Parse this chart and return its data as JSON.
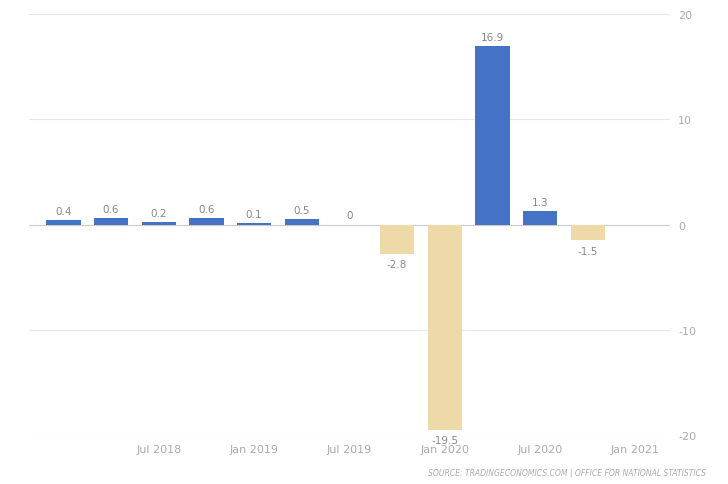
{
  "values": [
    0.4,
    0.6,
    0.2,
    0.6,
    0.1,
    0.5,
    0,
    -2.8,
    -19.5,
    16.9,
    1.3,
    -1.5
  ],
  "quarters_numeric": [
    2018.0,
    2018.25,
    2018.5,
    2018.75,
    2019.0,
    2019.25,
    2019.5,
    2019.75,
    2020.0,
    2020.25,
    2020.5,
    2020.75
  ],
  "bar_width": 0.18,
  "color_positive": "#4472C4",
  "color_negative": "#EED9A8",
  "ylim": [
    -20,
    20
  ],
  "yticks": [
    -20,
    -10,
    0,
    10,
    20
  ],
  "xtick_positions": [
    2018.5,
    2019.0,
    2019.5,
    2020.0,
    2020.5,
    2021.0
  ],
  "xtick_labels": [
    "Jul 2018",
    "Jan 2019",
    "Jul 2019",
    "Jan 2020",
    "Jul 2020",
    "Jan 2021"
  ],
  "xlim": [
    2017.82,
    2021.18
  ],
  "background_color": "#ffffff",
  "grid_color": "#e8e8e8",
  "source_text": "SOURCE: TRADINGECONOMICS.COM | OFFICE FOR NATIONAL STATISTICS",
  "label_fontsize": 7.5,
  "axis_fontsize": 8
}
